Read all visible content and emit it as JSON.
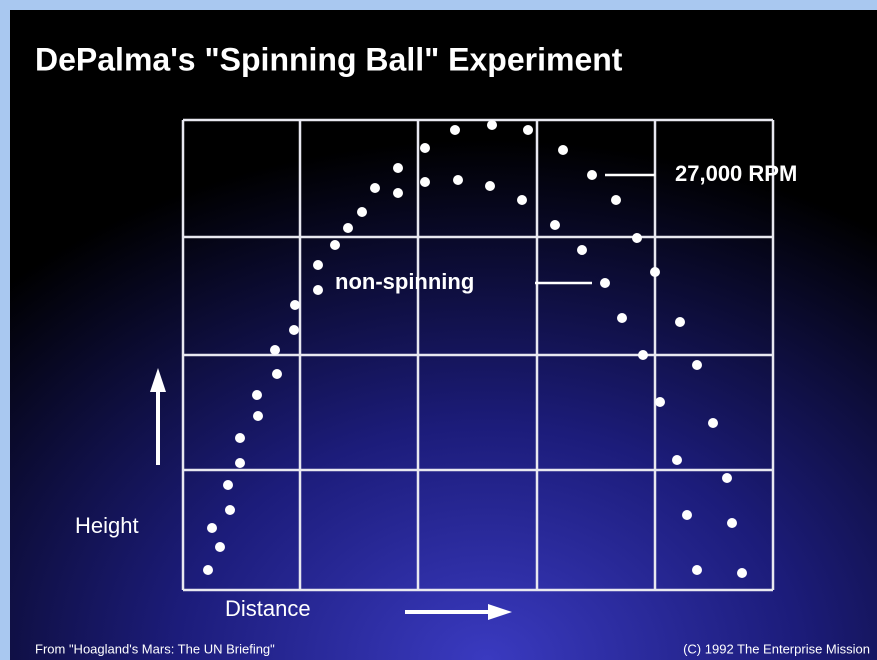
{
  "title": "DePalma's \"Spinning Ball\" Experiment",
  "annotations": [
    "27,000 RPM",
    "non-spinning"
  ],
  "y_label": "Height",
  "x_label": "Distance",
  "footer": {
    "source": "From \"Hoagland's Mars: The UN Briefing\"",
    "copyright": "(C) 1992 The Enterprise Mission"
  }
}
